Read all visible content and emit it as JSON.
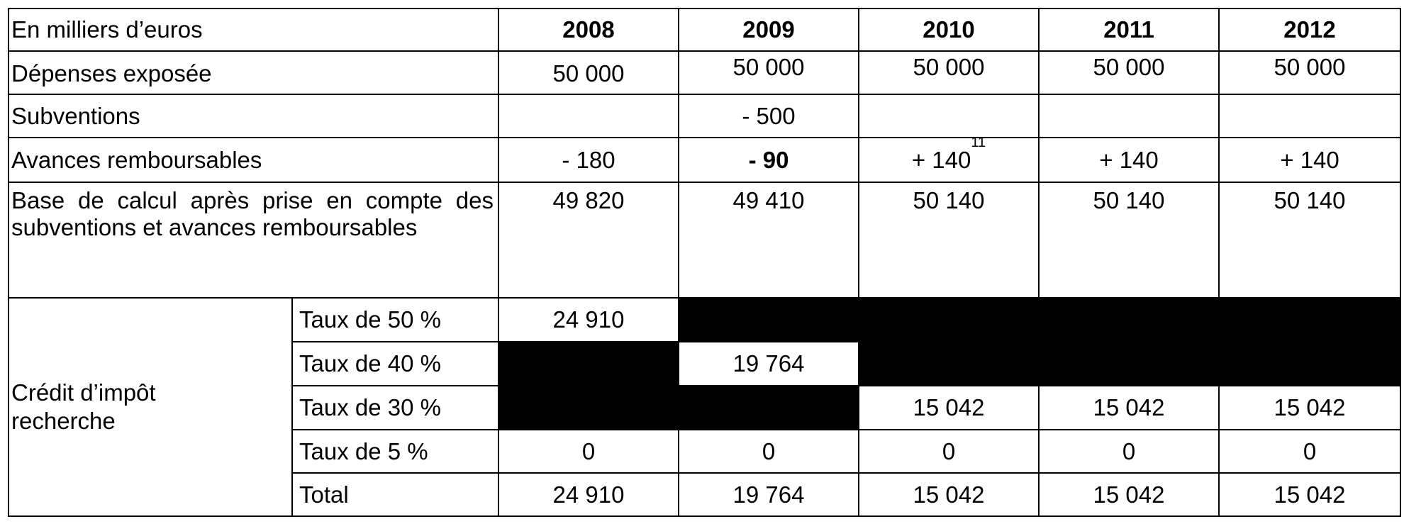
{
  "header": {
    "label": "En milliers d’euros",
    "years": [
      "2008",
      "2009",
      "2010",
      "2011",
      "2012"
    ]
  },
  "rows": {
    "depenses": {
      "label": "Dépenses exposée",
      "values": [
        "50 000",
        "50 000",
        "50 000",
        "50 000",
        "50 000"
      ]
    },
    "subventions": {
      "label": "Subventions",
      "values": [
        "",
        "- 500",
        "",
        "",
        ""
      ]
    },
    "avances": {
      "label": "Avances remboursables",
      "values": [
        "- 180",
        "- 90",
        "+ 140",
        "+ 140",
        "+ 140"
      ],
      "footnote_2010": "11"
    },
    "base": {
      "label": "Base de calcul après prise en compte des subventions et avances remboursables",
      "values": [
        "49 820",
        "49 410",
        "50 140",
        "50 140",
        "50 140"
      ]
    }
  },
  "credit": {
    "label": "Crédit d’impôt recherche",
    "taux50": {
      "label": "Taux de 50 %",
      "value_2008": "24 910"
    },
    "taux40": {
      "label": "Taux de 40 %",
      "value_2009": "19 764"
    },
    "taux30": {
      "label": "Taux de 30 %",
      "value_2010": "15 042",
      "value_2011": "15 042",
      "value_2012": "15 042"
    },
    "taux5": {
      "label": "Taux de 5 %",
      "values": [
        "0",
        "0",
        "0",
        "0",
        "0"
      ]
    },
    "total": {
      "label": "Total",
      "values": [
        "24 910",
        "19 764",
        "15 042",
        "15 042",
        "15 042"
      ]
    }
  },
  "colors": {
    "shaded_cell": "#000000",
    "border": "#000000",
    "background": "#ffffff"
  }
}
